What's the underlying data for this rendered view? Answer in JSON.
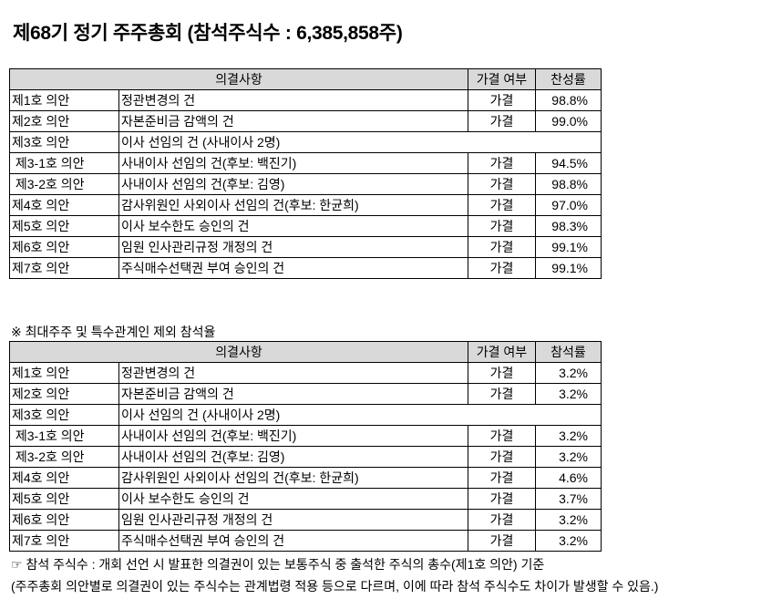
{
  "title": "제68기 정기 주주총회 (참석주식수 : 6,385,858주)",
  "table1": {
    "headers": [
      "의결사항",
      "가결 여부",
      "찬성률"
    ],
    "rows": [
      [
        "제1호 의안",
        "정관변경의 건",
        "가결",
        "98.8%"
      ],
      [
        "제2호 의안",
        "자본준비금 감액의 건",
        "가결",
        "99.0%"
      ],
      [
        "제3호 의안",
        "이사 선임의 건 (사내이사 2명)",
        "",
        ""
      ],
      [
        " 제3-1호 의안",
        "사내이사 선임의 건(후보: 백진기)",
        "가결",
        "94.5%"
      ],
      [
        " 제3-2호 의안",
        "사내이사 선임의 건(후보: 김영)",
        "가결",
        "98.8%"
      ],
      [
        "제4호 의안",
        "감사위원인 사외이사 선임의 건(후보: 한균희)",
        "가결",
        "97.0%"
      ],
      [
        "제5호 의안",
        "이사 보수한도 승인의 건",
        "가결",
        "98.3%"
      ],
      [
        "제6호 의안",
        "임원 인사관리규정 개정의 건",
        "가결",
        "99.1%"
      ],
      [
        "제7호 의안",
        "주식매수선택권 부여 승인의 건",
        "가결",
        "99.1%"
      ]
    ]
  },
  "section2_title": "※ 최대주주 및 특수관계인 제외 참석율",
  "table2": {
    "headers": [
      "의결사항",
      "가결 여부",
      "참석률"
    ],
    "rows": [
      [
        "제1호 의안",
        "정관변경의 건",
        "가결",
        "3.2%"
      ],
      [
        "제2호 의안",
        "자본준비금 감액의 건",
        "가결",
        "3.2%"
      ],
      [
        "제3호 의안",
        "이사 선임의 건 (사내이사 2명)",
        "",
        ""
      ],
      [
        " 제3-1호 의안",
        "사내이사 선임의 건(후보: 백진기)",
        "가결",
        "3.2%"
      ],
      [
        " 제3-2호 의안",
        "사내이사 선임의 건(후보: 김영)",
        "가결",
        "3.2%"
      ],
      [
        "제4호 의안",
        "감사위원인 사외이사 선임의 건(후보: 한균희)",
        "가결",
        "4.6%"
      ],
      [
        "제5호 의안",
        "이사 보수한도 승인의 건",
        "가결",
        "3.7%"
      ],
      [
        "제6호 의안",
        "임원 인사관리규정 개정의 건",
        "가결",
        "3.2%"
      ],
      [
        "제7호 의안",
        "주식매수선택권 부여 승인의 건",
        "가결",
        "3.2%"
      ]
    ]
  },
  "note1": "☞ 참석 주식수 : 개회 선언 시 발표한 의결권이 있는 보통주식 중 출석한 주식의 총수(제1호 의안) 기준",
  "note2": "(주주총회 의안별로 의결권이 있는 주식수는 관계법령 적용 등으로 다르며, 이에 따라 참석 주식수도 차이가 발생할 수 있음.)"
}
